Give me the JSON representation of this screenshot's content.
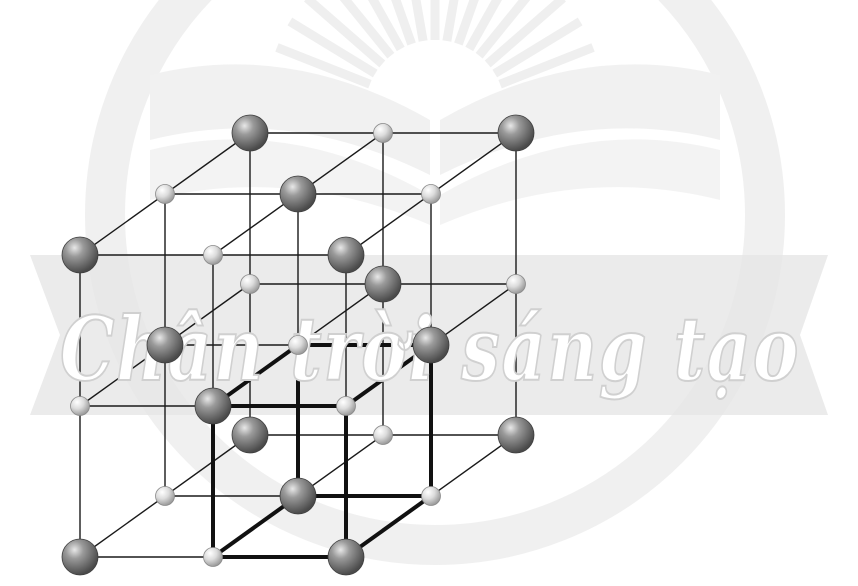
{
  "figure": {
    "subject": "crystal-lattice",
    "unit_cell_count": 1,
    "large_ion_color": "#7a7a7a",
    "small_ion_color": "#d4d4d4",
    "edge_color": "#111111"
  },
  "watermark": {
    "text": "Chân trời sáng tạo",
    "banner_color": "#e6e6e6",
    "logo_color": "#ececec"
  }
}
